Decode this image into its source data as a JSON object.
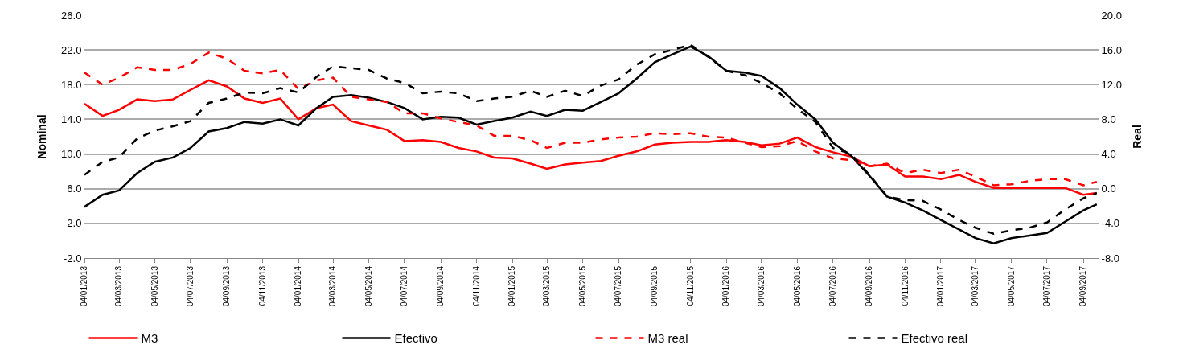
{
  "chart_data": {
    "type": "line",
    "xlabel": null,
    "ylabel": "Nominal",
    "y2label": "Real",
    "x": [
      "2013-01-04",
      "2013-02-04",
      "2013-03-04",
      "2013-04-04",
      "2013-05-04",
      "2013-06-04",
      "2013-07-04",
      "2013-08-04",
      "2013-09-04",
      "2013-10-04",
      "2013-11-04",
      "2013-12-04",
      "2014-01-04",
      "2014-02-04",
      "2014-03-04",
      "2014-04-04",
      "2014-05-04",
      "2014-06-04",
      "2014-07-04",
      "2014-08-04",
      "2014-09-04",
      "2014-10-04",
      "2014-11-04",
      "2014-12-04",
      "2015-01-04",
      "2015-02-04",
      "2015-03-04",
      "2015-04-04",
      "2015-05-04",
      "2015-06-04",
      "2015-07-04",
      "2015-08-04",
      "2015-09-04",
      "2015-10-04",
      "2015-11-04",
      "2015-12-04",
      "2016-01-04",
      "2016-02-04",
      "2016-03-04",
      "2016-04-04",
      "2016-05-04",
      "2016-06-04",
      "2016-07-04",
      "2016-08-04",
      "2016-09-04",
      "2016-10-04",
      "2016-11-04",
      "2016-12-04",
      "2017-01-04",
      "2017-02-04",
      "2017-03-04",
      "2017-04-04",
      "2017-05-04",
      "2017-06-04",
      "2017-07-04",
      "2017-08-04",
      "2017-09-04",
      "2017-09-27"
    ],
    "series": [
      {
        "name": "M3",
        "color": "#ff0000",
        "line_style": "solid",
        "values": [
          15.8,
          14.4,
          15.1,
          16.3,
          16.1,
          16.3,
          17.4,
          18.5,
          17.8,
          16.4,
          15.9,
          16.4,
          14.0,
          15.3,
          15.7,
          13.8,
          13.3,
          12.8,
          11.5,
          11.6,
          11.4,
          10.7,
          10.3,
          9.6,
          9.5,
          8.9,
          8.3,
          8.8,
          9.0,
          9.2,
          9.8,
          10.3,
          11.1,
          11.3,
          11.4,
          11.4,
          11.6,
          11.4,
          11.0,
          11.2,
          11.9,
          10.8,
          10.2,
          9.7,
          8.6,
          8.8,
          7.4,
          7.4,
          7.1,
          7.6,
          6.8,
          6.1,
          6.1,
          6.1,
          6.1,
          6.1,
          5.3,
          5.5
        ]
      },
      {
        "name": "Efectivo",
        "color": "#000000",
        "line_style": "solid",
        "values": [
          3.9,
          5.3,
          5.8,
          7.8,
          9.1,
          9.6,
          10.7,
          12.6,
          13.0,
          13.7,
          13.5,
          14.0,
          13.3,
          15.3,
          16.6,
          16.8,
          16.5,
          16.0,
          15.3,
          14.0,
          14.3,
          14.2,
          13.4,
          13.8,
          14.2,
          14.9,
          14.4,
          15.1,
          15.0,
          16.0,
          17.0,
          18.7,
          20.6,
          21.5,
          22.4,
          21.3,
          19.6,
          19.4,
          19.0,
          17.6,
          15.7,
          14.0,
          11.3,
          9.8,
          7.5,
          5.1,
          4.4,
          3.5,
          2.4,
          1.3,
          0.3,
          -0.3,
          0.3,
          0.6,
          0.9,
          2.2,
          3.5,
          4.2
        ]
      },
      {
        "name": "M3 real",
        "color": "#ff0000",
        "line_style": "dashed",
        "axis": "y2",
        "values": [
          13.4,
          12.0,
          12.8,
          14.0,
          13.7,
          13.7,
          14.4,
          15.7,
          15.0,
          13.6,
          13.3,
          13.7,
          11.5,
          12.5,
          12.8,
          10.6,
          10.3,
          10.0,
          8.7,
          8.7,
          8.1,
          7.7,
          7.3,
          6.1,
          6.1,
          5.6,
          4.7,
          5.3,
          5.3,
          5.7,
          5.9,
          6.0,
          6.4,
          6.3,
          6.4,
          6.0,
          5.9,
          5.3,
          4.8,
          4.9,
          5.5,
          4.3,
          3.5,
          3.3,
          2.6,
          2.9,
          1.8,
          2.2,
          1.8,
          2.2,
          1.4,
          0.4,
          0.5,
          0.9,
          1.1,
          1.1,
          0.4,
          0.8
        ]
      },
      {
        "name": "Efectivo real",
        "color": "#000000",
        "line_style": "dashed",
        "axis": "y2",
        "values": [
          1.6,
          3.1,
          3.6,
          5.8,
          6.7,
          7.2,
          7.8,
          9.9,
          10.4,
          11.1,
          11.0,
          11.6,
          11.1,
          12.9,
          14.1,
          13.9,
          13.7,
          12.7,
          12.2,
          11.0,
          11.2,
          11.0,
          10.1,
          10.4,
          10.6,
          11.3,
          10.6,
          11.3,
          10.7,
          11.9,
          12.6,
          14.3,
          15.5,
          16.0,
          16.6,
          15.2,
          13.6,
          13.1,
          12.2,
          11.0,
          9.2,
          7.7,
          4.7,
          4.0,
          1.6,
          -0.9,
          -1.3,
          -1.4,
          -2.4,
          -3.6,
          -4.5,
          -5.2,
          -4.8,
          -4.5,
          -3.9,
          -2.4,
          -1.1,
          -0.5
        ]
      }
    ],
    "xlim": [
      "2013-01-04",
      "2017-09-30"
    ],
    "xticks": [
      {
        "value": "2013-01-04",
        "label": "04/01/2013"
      },
      {
        "value": "2013-03-04",
        "label": "04/03/2013"
      },
      {
        "value": "2013-05-04",
        "label": "04/05/2013"
      },
      {
        "value": "2013-07-04",
        "label": "04/07/2013"
      },
      {
        "value": "2013-09-04",
        "label": "04/09/2013"
      },
      {
        "value": "2013-11-04",
        "label": "04/11/2013"
      },
      {
        "value": "2014-01-04",
        "label": "04/01/2014"
      },
      {
        "value": "2014-03-04",
        "label": "04/03/2014"
      },
      {
        "value": "2014-05-04",
        "label": "04/05/2014"
      },
      {
        "value": "2014-07-04",
        "label": "04/07/2014"
      },
      {
        "value": "2014-09-04",
        "label": "04/09/2014"
      },
      {
        "value": "2014-11-04",
        "label": "04/11/2014"
      },
      {
        "value": "2015-01-04",
        "label": "04/01/2015"
      },
      {
        "value": "2015-03-04",
        "label": "04/03/2015"
      },
      {
        "value": "2015-05-04",
        "label": "04/05/2015"
      },
      {
        "value": "2015-07-04",
        "label": "04/07/2015"
      },
      {
        "value": "2015-09-04",
        "label": "04/09/2015"
      },
      {
        "value": "2015-11-04",
        "label": "04/11/2015"
      },
      {
        "value": "2016-01-04",
        "label": "04/01/2016"
      },
      {
        "value": "2016-03-04",
        "label": "04/03/2016"
      },
      {
        "value": "2016-05-04",
        "label": "04/05/2016"
      },
      {
        "value": "2016-07-04",
        "label": "04/07/2016"
      },
      {
        "value": "2016-09-04",
        "label": "04/09/2016"
      },
      {
        "value": "2016-11-04",
        "label": "04/11/2016"
      },
      {
        "value": "2017-01-04",
        "label": "04/01/2017"
      },
      {
        "value": "2017-03-04",
        "label": "04/03/2017"
      },
      {
        "value": "2017-05-04",
        "label": "04/05/2017"
      },
      {
        "value": "2017-07-04",
        "label": "04/07/2017"
      },
      {
        "value": "2017-09-04",
        "label": "04/09/2017"
      }
    ],
    "ylim": [
      -2,
      26
    ],
    "yticks": [
      {
        "value": -2,
        "label": "-2.0"
      },
      {
        "value": 2,
        "label": "2.0"
      },
      {
        "value": 6,
        "label": "6.0"
      },
      {
        "value": 10,
        "label": "10.0"
      },
      {
        "value": 14,
        "label": "14.0"
      },
      {
        "value": 18,
        "label": "18.0"
      },
      {
        "value": 22,
        "label": "22.0"
      },
      {
        "value": 26,
        "label": "26.0"
      }
    ],
    "y2lim": [
      -8,
      20
    ],
    "y2ticks": [
      {
        "value": -8,
        "label": "-8.0"
      },
      {
        "value": -4,
        "label": "-4.0"
      },
      {
        "value": 0,
        "label": "0.0"
      },
      {
        "value": 4,
        "label": "4.0"
      },
      {
        "value": 8,
        "label": "8.0"
      },
      {
        "value": 12,
        "label": "12.0"
      },
      {
        "value": 16,
        "label": "16.0"
      },
      {
        "value": 20,
        "label": "20.0"
      }
    ],
    "grid": "y",
    "legend": "bottom",
    "marker": "none"
  }
}
